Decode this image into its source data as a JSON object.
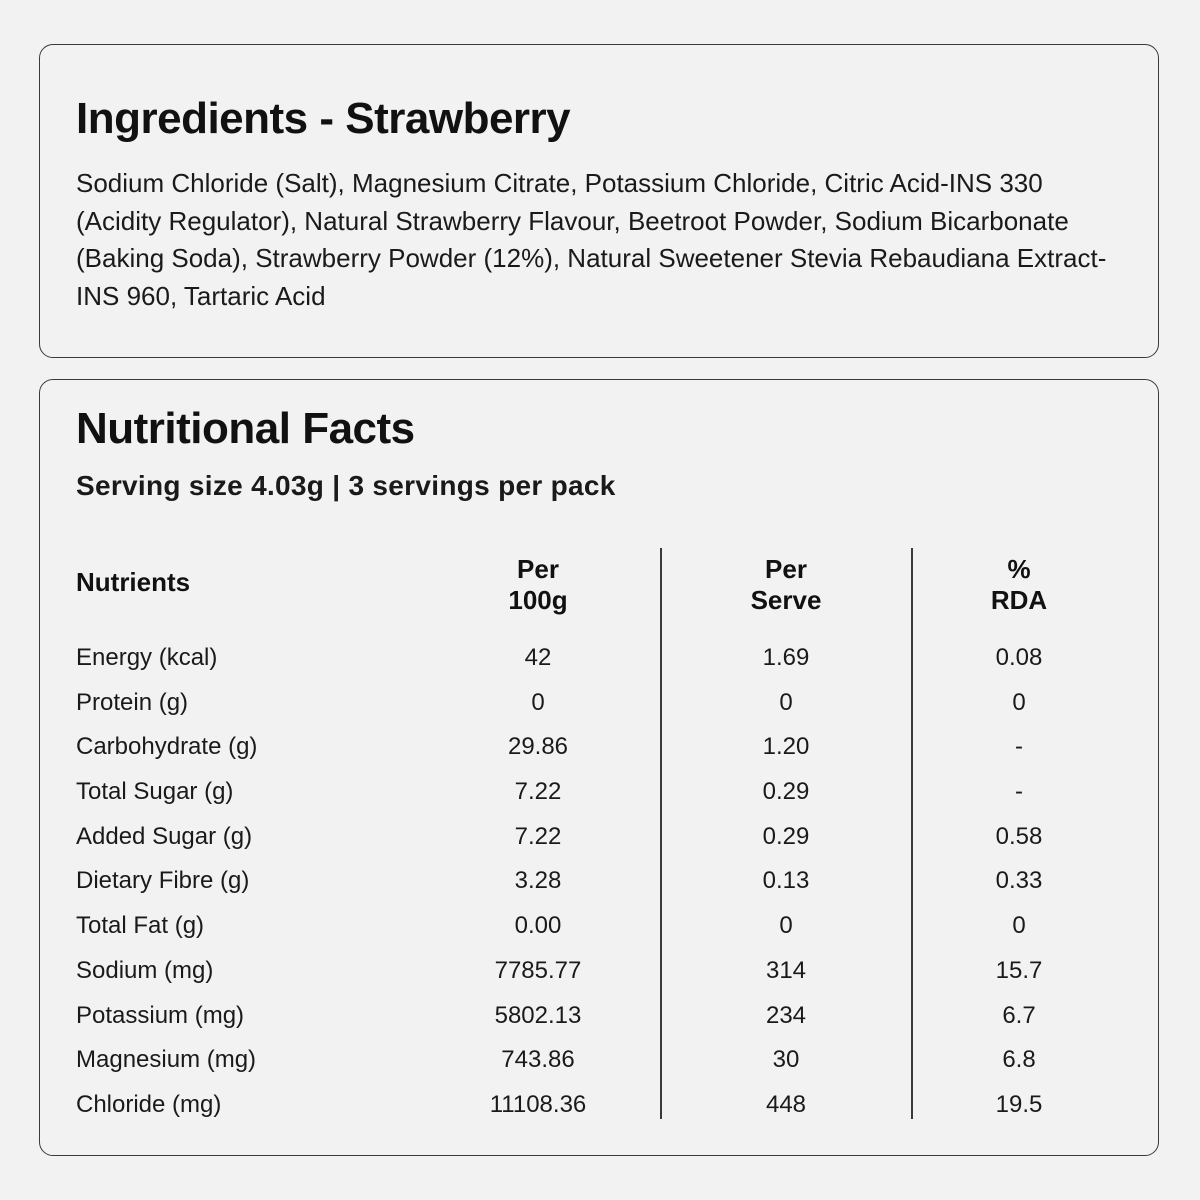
{
  "ingredients": {
    "title": "Ingredients - Strawberry",
    "text": "Sodium Chloride (Salt), Magnesium Citrate, Potassium Chloride, Citric Acid-INS 330 (Acidity Regulator), Natural Strawberry Flavour, Beetroot Powder, Sodium Bicarbonate (Baking Soda), Strawberry Powder (12%), Natural Sweetener Stevia Rebaudiana Extract-INS 960, Tartaric Acid"
  },
  "nutrition": {
    "title": "Nutritional Facts",
    "serving": "Serving size 4.03g | 3 servings per pack",
    "headers": {
      "nutrients": "Nutrients",
      "per100_line1": "Per",
      "per100_line2": "100g",
      "serve_line1": "Per",
      "serve_line2": "Serve",
      "rda_line1": "%",
      "rda_line2": "RDA"
    },
    "rows": [
      {
        "name": "Energy (kcal)",
        "per100": "42",
        "serve": "1.69",
        "rda": "0.08"
      },
      {
        "name": "Protein (g)",
        "per100": "0",
        "serve": "0",
        "rda": "0"
      },
      {
        "name": "Carbohydrate (g)",
        "per100": "29.86",
        "serve": "1.20",
        "rda": "-"
      },
      {
        "name": "Total Sugar (g)",
        "per100": "7.22",
        "serve": "0.29",
        "rda": "-"
      },
      {
        "name": "Added Sugar (g)",
        "per100": "7.22",
        "serve": "0.29",
        "rda": "0.58"
      },
      {
        "name": "Dietary Fibre (g)",
        "per100": "3.28",
        "serve": "0.13",
        "rda": "0.33"
      },
      {
        "name": "Total Fat (g)",
        "per100": "0.00",
        "serve": "0",
        "rda": "0"
      },
      {
        "name": "Sodium (mg)",
        "per100": "7785.77",
        "serve": "314",
        "rda": "15.7"
      },
      {
        "name": "Potassium (mg)",
        "per100": "5802.13",
        "serve": "234",
        "rda": "6.7"
      },
      {
        "name": "Magnesium (mg)",
        "per100": "743.86",
        "serve": "30",
        "rda": "6.8"
      },
      {
        "name": "Chloride (mg)",
        "per100": "11108.36",
        "serve": "448",
        "rda": "19.5"
      }
    ]
  }
}
